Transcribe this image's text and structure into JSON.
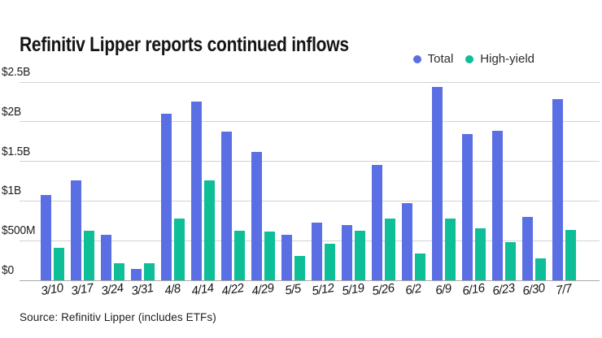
{
  "chart_data": {
    "type": "bar",
    "title": "Refinitiv Lipper reports continued inflows",
    "unit": "billions of dollars",
    "categories": [
      "3/10",
      "3/17",
      "3/24",
      "3/31",
      "4/8",
      "4/14",
      "4/22",
      "4/29",
      "5/5",
      "5/12",
      "5/19",
      "5/26",
      "6/2",
      "6/9",
      "6/16",
      "6/23",
      "6/30",
      "7/7"
    ],
    "series": [
      {
        "name": "Total",
        "color": "#5B6FE4",
        "values": [
          1.08,
          1.26,
          0.57,
          0.14,
          2.1,
          2.25,
          1.87,
          1.62,
          0.57,
          0.73,
          0.7,
          1.45,
          0.97,
          2.44,
          1.84,
          1.89,
          0.8,
          2.28
        ]
      },
      {
        "name": "High-yield",
        "color": "#0EBE96",
        "values": [
          0.41,
          0.62,
          0.22,
          0.22,
          0.78,
          1.26,
          0.62,
          0.61,
          0.31,
          0.46,
          0.62,
          0.78,
          0.34,
          0.78,
          0.66,
          0.48,
          0.28,
          0.64
        ]
      }
    ],
    "xlabel": "",
    "ylabel": "",
    "ylim": [
      0,
      2.5
    ],
    "y_ticks": [
      {
        "label": "$0",
        "value": 0
      },
      {
        "label": "$500M",
        "value": 0.5
      },
      {
        "label": "$1B",
        "value": 1
      },
      {
        "label": "$1.5B",
        "value": 1.5
      },
      {
        "label": "$2B",
        "value": 2
      },
      {
        "label": "$2.5B",
        "value": 2.5
      }
    ],
    "grid": true,
    "legend_position": "top-right"
  },
  "legend": {
    "items": [
      {
        "label": "Total",
        "color": "#5B6FE4"
      },
      {
        "label": "High-yield",
        "color": "#0EBE96"
      }
    ]
  },
  "source_note": "Source: Refinitiv Lipper (includes ETFs)",
  "colors": {
    "total_bar": "#5B6FE4",
    "high_yield_bar": "#0EBE96",
    "gridline": "#d2d2d2",
    "axis_line": "#a9a9a9",
    "title_text": "#141414",
    "tick_text": "#1e1e1e",
    "background": "#ffffff"
  }
}
